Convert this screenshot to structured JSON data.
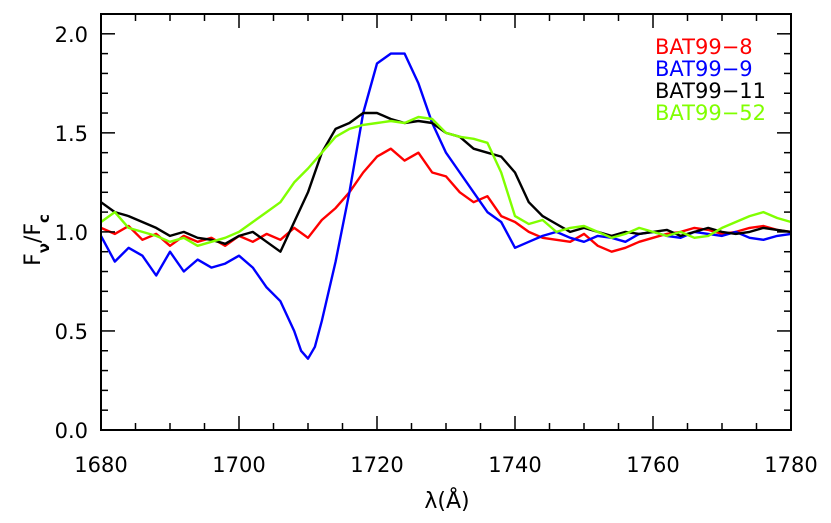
{
  "chart_data": {
    "type": "line",
    "title": "",
    "xlabel": "λ(Å)",
    "ylabel": {
      "main": "F",
      "main_sub": "ν",
      "sep": "/F",
      "sep_sub": "c"
    },
    "xlim": [
      1680,
      1780
    ],
    "ylim": [
      0,
      2.1
    ],
    "xticks": [
      1680,
      1700,
      1720,
      1740,
      1760,
      1780
    ],
    "yticks": [
      0.0,
      0.5,
      1.0,
      1.5,
      2.0
    ],
    "ytick_labels": [
      "0.0",
      "0.5",
      "1.0",
      "1.5",
      "2.0"
    ],
    "grid": false,
    "legend": "top-right",
    "series": [
      {
        "name": "BAT99−8",
        "color": "#ff0000",
        "x": [
          1680,
          1682,
          1684,
          1686,
          1688,
          1690,
          1692,
          1694,
          1696,
          1698,
          1700,
          1702,
          1704,
          1706,
          1708,
          1710,
          1712,
          1714,
          1716,
          1718,
          1720,
          1722,
          1724,
          1726,
          1728,
          1730,
          1732,
          1734,
          1736,
          1738,
          1740,
          1742,
          1744,
          1746,
          1748,
          1750,
          1752,
          1754,
          1756,
          1758,
          1760,
          1762,
          1764,
          1766,
          1768,
          1770,
          1772,
          1774,
          1776,
          1778,
          1780
        ],
        "y": [
          1.02,
          0.99,
          1.03,
          0.96,
          0.99,
          0.93,
          0.98,
          0.95,
          0.97,
          0.93,
          0.98,
          0.95,
          0.99,
          0.96,
          1.02,
          0.97,
          1.06,
          1.12,
          1.2,
          1.3,
          1.38,
          1.42,
          1.36,
          1.4,
          1.3,
          1.28,
          1.2,
          1.15,
          1.18,
          1.08,
          1.05,
          1.0,
          0.97,
          0.96,
          0.95,
          0.99,
          0.93,
          0.9,
          0.92,
          0.95,
          0.97,
          0.99,
          1.0,
          1.02,
          1.01,
          0.99,
          1.0,
          1.02,
          1.03,
          1.01,
          1.0
        ]
      },
      {
        "name": "BAT99−9",
        "color": "#0000ff",
        "x": [
          1680,
          1682,
          1684,
          1686,
          1688,
          1690,
          1692,
          1694,
          1696,
          1698,
          1700,
          1702,
          1704,
          1706,
          1708,
          1709,
          1710,
          1711,
          1712,
          1714,
          1716,
          1718,
          1720,
          1722,
          1724,
          1726,
          1728,
          1730,
          1732,
          1734,
          1736,
          1738,
          1740,
          1742,
          1744,
          1746,
          1748,
          1750,
          1752,
          1754,
          1756,
          1758,
          1760,
          1762,
          1764,
          1766,
          1768,
          1770,
          1772,
          1774,
          1776,
          1778,
          1780
        ],
        "y": [
          0.98,
          0.85,
          0.92,
          0.88,
          0.78,
          0.9,
          0.8,
          0.86,
          0.82,
          0.84,
          0.88,
          0.82,
          0.72,
          0.65,
          0.5,
          0.4,
          0.36,
          0.42,
          0.55,
          0.85,
          1.2,
          1.6,
          1.85,
          1.9,
          1.9,
          1.75,
          1.55,
          1.4,
          1.3,
          1.2,
          1.1,
          1.05,
          0.92,
          0.95,
          0.98,
          1.0,
          0.97,
          0.95,
          0.98,
          0.97,
          0.95,
          0.99,
          1.0,
          0.98,
          0.97,
          1.0,
          0.99,
          0.98,
          1.0,
          0.97,
          0.96,
          0.98,
          0.99
        ]
      },
      {
        "name": "BAT99−11",
        "color": "#000000",
        "x": [
          1680,
          1682,
          1684,
          1686,
          1688,
          1690,
          1692,
          1694,
          1696,
          1698,
          1700,
          1702,
          1704,
          1706,
          1708,
          1710,
          1712,
          1714,
          1716,
          1718,
          1720,
          1722,
          1724,
          1726,
          1728,
          1730,
          1732,
          1734,
          1736,
          1738,
          1740,
          1742,
          1744,
          1746,
          1748,
          1750,
          1752,
          1754,
          1756,
          1758,
          1760,
          1762,
          1764,
          1766,
          1768,
          1770,
          1772,
          1774,
          1776,
          1778,
          1780
        ],
        "y": [
          1.15,
          1.1,
          1.08,
          1.05,
          1.02,
          0.98,
          1.0,
          0.97,
          0.96,
          0.94,
          0.98,
          1.0,
          0.95,
          0.9,
          1.05,
          1.2,
          1.4,
          1.52,
          1.55,
          1.6,
          1.6,
          1.57,
          1.55,
          1.56,
          1.55,
          1.5,
          1.48,
          1.42,
          1.4,
          1.38,
          1.3,
          1.15,
          1.08,
          1.04,
          1.0,
          1.02,
          1.0,
          0.98,
          1.0,
          0.99,
          1.0,
          1.01,
          0.98,
          1.0,
          1.02,
          1.0,
          0.99,
          1.0,
          1.02,
          1.01,
          1.0
        ]
      },
      {
        "name": "BAT99−52",
        "color": "#80ff00",
        "x": [
          1680,
          1682,
          1684,
          1686,
          1688,
          1690,
          1692,
          1694,
          1696,
          1698,
          1700,
          1702,
          1704,
          1706,
          1708,
          1710,
          1712,
          1714,
          1716,
          1718,
          1720,
          1722,
          1724,
          1726,
          1728,
          1730,
          1732,
          1734,
          1736,
          1738,
          1740,
          1742,
          1744,
          1746,
          1748,
          1750,
          1752,
          1754,
          1756,
          1758,
          1760,
          1762,
          1764,
          1766,
          1768,
          1770,
          1772,
          1774,
          1776,
          1778,
          1780
        ],
        "y": [
          1.05,
          1.1,
          1.02,
          1.0,
          0.98,
          0.95,
          0.97,
          0.93,
          0.95,
          0.97,
          1.0,
          1.05,
          1.1,
          1.15,
          1.25,
          1.32,
          1.4,
          1.48,
          1.52,
          1.54,
          1.55,
          1.56,
          1.55,
          1.58,
          1.57,
          1.5,
          1.48,
          1.47,
          1.45,
          1.3,
          1.08,
          1.04,
          1.06,
          1.0,
          1.02,
          1.03,
          1.0,
          0.97,
          0.99,
          1.02,
          1.0,
          0.98,
          1.0,
          0.97,
          0.98,
          1.02,
          1.05,
          1.08,
          1.1,
          1.07,
          1.05
        ]
      }
    ]
  }
}
